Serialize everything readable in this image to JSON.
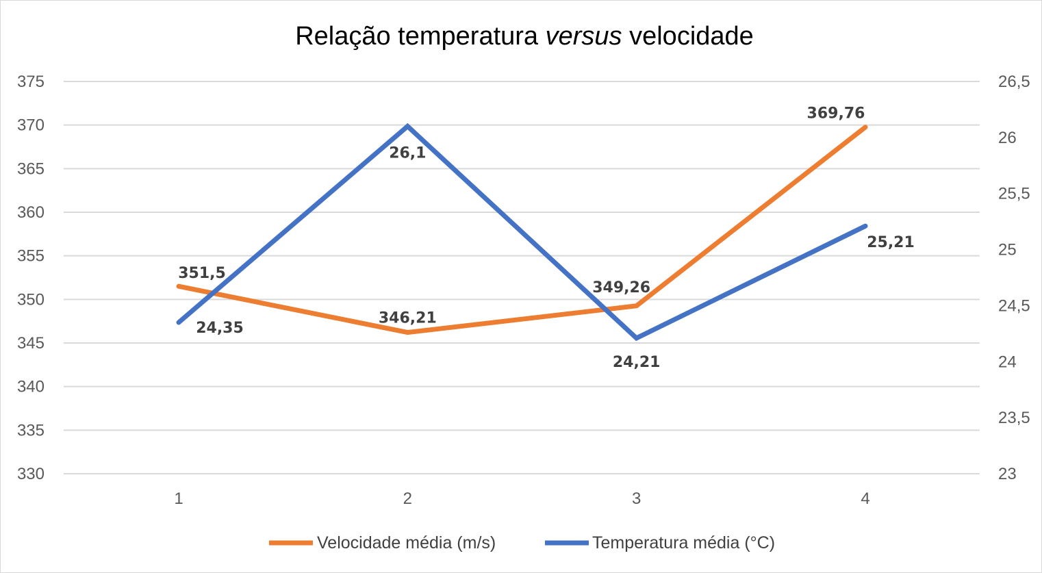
{
  "chart_data": {
    "type": "line",
    "title_parts": [
      "Relação temperatura ",
      "versus",
      " velocidade"
    ],
    "categories": [
      "1",
      "2",
      "3",
      "4"
    ],
    "y_left": {
      "min": 330,
      "max": 375,
      "step": 5,
      "ticks": [
        "330",
        "335",
        "340",
        "345",
        "350",
        "355",
        "360",
        "365",
        "370",
        "375"
      ]
    },
    "y_right": {
      "min": 23,
      "max": 26.5,
      "step": 0.5,
      "ticks": [
        "23",
        "23,5",
        "24",
        "24,5",
        "25",
        "25,5",
        "26",
        "26,5"
      ]
    },
    "grid": true,
    "legend_position": "bottom",
    "series": [
      {
        "name": "Velocidade média (m/s)",
        "axis": "left",
        "color": "#ED7D31",
        "values": [
          351.5,
          346.21,
          349.26,
          369.76
        ],
        "labels": [
          "351,5",
          "346,21",
          "349,26",
          "369,76"
        ]
      },
      {
        "name": "Temperatura média (°C)",
        "axis": "right",
        "color": "#4472C4",
        "values": [
          24.35,
          26.1,
          24.21,
          25.21
        ],
        "labels": [
          "24,35",
          "26,1",
          "24,21",
          "25,21"
        ]
      }
    ]
  }
}
